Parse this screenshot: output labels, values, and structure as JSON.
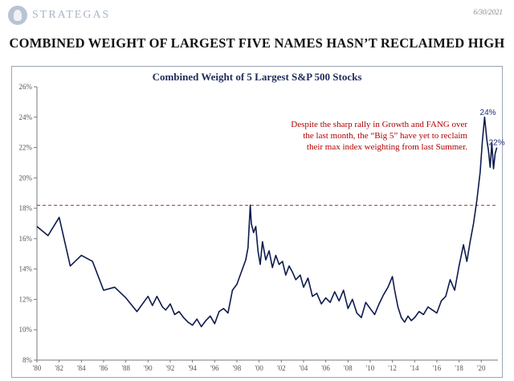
{
  "header": {
    "brand": "STRATEGAS",
    "date": "6/30/2021",
    "title": "COMBINED WEIGHT OF LARGEST FIVE NAMES HASN’T RECLAIMED HIGH"
  },
  "colors": {
    "line": "#0d1a4d",
    "reference": "#b03030",
    "annotation": "#b00000",
    "label": "#1f2a7a"
  },
  "chart_data": {
    "type": "line",
    "title": "Combined Weight of 5 Largest S&P 500 Stocks",
    "xlabel": "",
    "ylabel": "",
    "xlim": [
      1980,
      2021.5
    ],
    "ylim": [
      8,
      26
    ],
    "x_ticks": [
      {
        "value": 1980,
        "label": "'80"
      },
      {
        "value": 1982,
        "label": "'82"
      },
      {
        "value": 1984,
        "label": "'84"
      },
      {
        "value": 1986,
        "label": "'86"
      },
      {
        "value": 1988,
        "label": "'88"
      },
      {
        "value": 1990,
        "label": "'90"
      },
      {
        "value": 1992,
        "label": "'92"
      },
      {
        "value": 1994,
        "label": "'94"
      },
      {
        "value": 1996,
        "label": "'96"
      },
      {
        "value": 1998,
        "label": "'98"
      },
      {
        "value": 2000,
        "label": "'00"
      },
      {
        "value": 2002,
        "label": "'02"
      },
      {
        "value": 2004,
        "label": "'04"
      },
      {
        "value": 2006,
        "label": "'06"
      },
      {
        "value": 2008,
        "label": "'08"
      },
      {
        "value": 2010,
        "label": "'10"
      },
      {
        "value": 2012,
        "label": "'12"
      },
      {
        "value": 2014,
        "label": "'14"
      },
      {
        "value": 2016,
        "label": "'16"
      },
      {
        "value": 2018,
        "label": "'18"
      },
      {
        "value": 2020,
        "label": "'20"
      }
    ],
    "y_ticks": [
      {
        "value": 8,
        "label": "8%"
      },
      {
        "value": 10,
        "label": "10%"
      },
      {
        "value": 12,
        "label": "12%"
      },
      {
        "value": 14,
        "label": "14%"
      },
      {
        "value": 16,
        "label": "16%"
      },
      {
        "value": 18,
        "label": "18%"
      },
      {
        "value": 20,
        "label": "20%"
      },
      {
        "value": 22,
        "label": "22%"
      },
      {
        "value": 24,
        "label": "24%"
      },
      {
        "value": 26,
        "label": "26%"
      }
    ],
    "grid": false,
    "reference_line": {
      "y": 18.2,
      "style": "dashed"
    },
    "annotation": "Despite the sharp rally in Growth and FANG over the last month, the “Big 5” have yet to reclaim their max index weighting from last Summer.",
    "point_labels": [
      {
        "x": 2020.6,
        "y": 24,
        "label": "24%"
      },
      {
        "x": 2021.4,
        "y": 22,
        "label": "22%"
      }
    ],
    "series": [
      {
        "x": [
          1980.0,
          1981.0,
          1982.0,
          1983.0,
          1984.0,
          1985.0,
          1986.0,
          1987.0,
          1988.0,
          1989.0,
          1990.0,
          1990.4,
          1990.8,
          1991.3,
          1991.6,
          1992.0,
          1992.4,
          1992.8,
          1993.2,
          1993.6,
          1994.0,
          1994.4,
          1994.8,
          1995.2,
          1995.6,
          1996.0,
          1996.4,
          1996.8,
          1997.2,
          1997.6,
          1998.0,
          1998.4,
          1998.8,
          1999.0,
          1999.2,
          1999.3,
          1999.5,
          1999.7,
          1999.9,
          2000.1,
          2000.3,
          2000.6,
          2000.9,
          2001.2,
          2001.5,
          2001.8,
          2002.1,
          2002.4,
          2002.7,
          2003.0,
          2003.3,
          2003.7,
          2004.0,
          2004.4,
          2004.8,
          2005.2,
          2005.6,
          2006.0,
          2006.4,
          2006.8,
          2007.2,
          2007.6,
          2008.0,
          2008.4,
          2008.8,
          2009.2,
          2009.6,
          2010.0,
          2010.4,
          2010.8,
          2011.2,
          2011.6,
          2012.0,
          2012.2,
          2012.5,
          2012.8,
          2013.1,
          2013.4,
          2013.7,
          2014.0,
          2014.4,
          2014.8,
          2015.2,
          2015.6,
          2016.0,
          2016.4,
          2016.8,
          2017.2,
          2017.6,
          2018.0,
          2018.4,
          2018.7,
          2019.0,
          2019.3,
          2019.6,
          2019.9,
          2020.1,
          2020.3,
          2020.5,
          2020.65,
          2020.8,
          2020.95,
          2021.1,
          2021.25,
          2021.4
        ],
        "values": [
          16.8,
          16.2,
          17.4,
          14.2,
          14.9,
          14.5,
          12.6,
          12.8,
          12.1,
          11.2,
          12.2,
          11.6,
          12.2,
          11.5,
          11.3,
          11.7,
          11.0,
          11.2,
          10.8,
          10.5,
          10.3,
          10.7,
          10.2,
          10.6,
          10.9,
          10.4,
          11.2,
          11.4,
          11.1,
          12.6,
          13.0,
          13.8,
          14.6,
          15.4,
          18.2,
          17.0,
          16.4,
          16.8,
          15.2,
          14.3,
          15.8,
          14.6,
          15.2,
          14.1,
          14.9,
          14.3,
          14.5,
          13.6,
          14.2,
          13.8,
          13.3,
          13.6,
          12.8,
          13.4,
          12.2,
          12.4,
          11.7,
          12.1,
          11.8,
          12.5,
          11.9,
          12.6,
          11.4,
          12.0,
          11.1,
          10.8,
          11.8,
          11.4,
          11.0,
          11.7,
          12.3,
          12.8,
          13.5,
          12.6,
          11.5,
          10.8,
          10.5,
          10.9,
          10.6,
          10.8,
          11.2,
          11.0,
          11.5,
          11.3,
          11.1,
          11.9,
          12.2,
          13.3,
          12.6,
          14.2,
          15.6,
          14.5,
          15.8,
          17.0,
          18.5,
          20.4,
          22.4,
          24.0,
          22.5,
          21.8,
          20.7,
          22.3,
          20.6,
          21.6,
          22.0
        ]
      }
    ]
  }
}
